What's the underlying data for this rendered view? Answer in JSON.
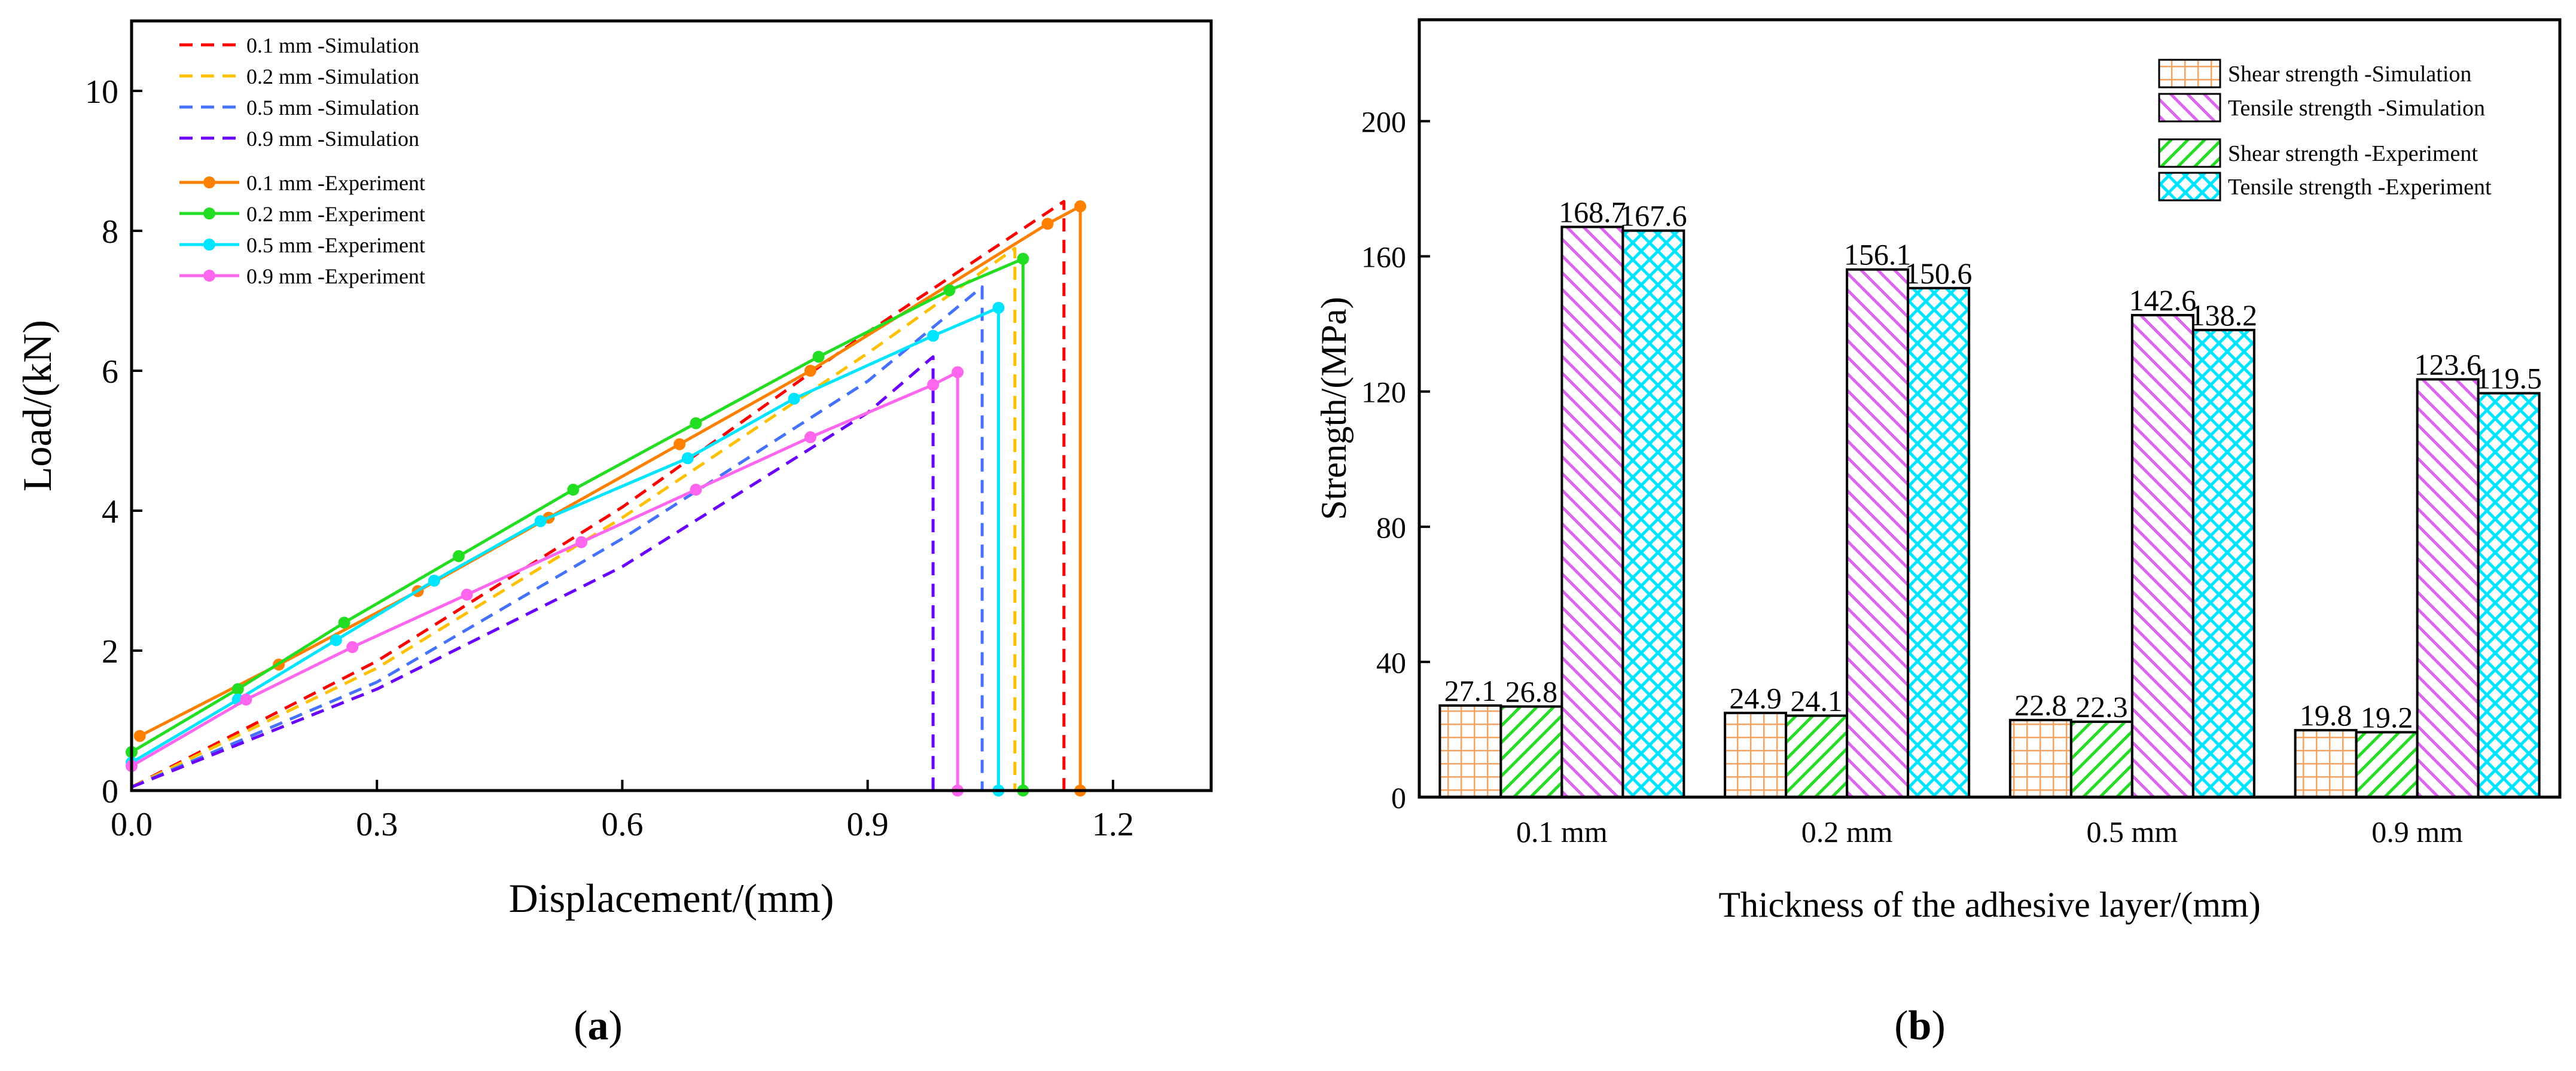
{
  "chart_data": [
    {
      "panel": "(a)",
      "panel_letter": "a",
      "type": "line",
      "xlabel": "Displacement/(mm)",
      "ylabel": "Load/(kN)",
      "xlim": [
        0,
        1.32
      ],
      "ylim": [
        0,
        11
      ],
      "xticks": [
        0.0,
        0.3,
        0.6,
        0.9,
        1.2
      ],
      "xtick_labels": [
        "0.0",
        "0.3",
        "0.6",
        "0.9",
        "1.2"
      ],
      "yticks": [
        0,
        2,
        4,
        6,
        8,
        10
      ],
      "ytick_labels": [
        "0",
        "2",
        "4",
        "6",
        "8",
        "10"
      ],
      "legend_position": "top-left",
      "series": [
        {
          "name": "0.1 mm -Simulation",
          "style": "dashed",
          "color": "#ff0000",
          "x": [
            0.0,
            0.3,
            0.6,
            0.9,
            1.14,
            1.14,
            1.145
          ],
          "y": [
            0.05,
            1.85,
            4.05,
            6.55,
            8.42,
            0.0,
            0.0
          ]
        },
        {
          "name": "0.2 mm -Simulation",
          "style": "dashed",
          "color": "#ffc000",
          "x": [
            0.0,
            0.3,
            0.6,
            0.9,
            1.08,
            1.08
          ],
          "y": [
            0.05,
            1.75,
            3.9,
            6.25,
            7.75,
            0.0
          ]
        },
        {
          "name": "0.5 mm -Simulation",
          "style": "dashed",
          "color": "#4472ff",
          "x": [
            0.0,
            0.3,
            0.6,
            0.9,
            1.04,
            1.04
          ],
          "y": [
            0.05,
            1.55,
            3.6,
            5.85,
            7.2,
            0.0
          ]
        },
        {
          "name": "0.9 mm -Simulation",
          "style": "dashed",
          "color": "#6a00ff",
          "x": [
            0.0,
            0.3,
            0.6,
            0.9,
            0.98,
            0.98
          ],
          "y": [
            0.05,
            1.45,
            3.2,
            5.4,
            6.2,
            0.0
          ]
        },
        {
          "name": "0.1 mm -Experiment",
          "style": "solid-marker",
          "color": "#ff7f00",
          "x": [
            0.01,
            0.18,
            0.35,
            0.51,
            0.67,
            0.83,
            1.12,
            1.16,
            1.16
          ],
          "y": [
            0.78,
            1.8,
            2.85,
            3.9,
            4.95,
            6.0,
            8.1,
            8.35,
            0.0
          ]
        },
        {
          "name": "0.2 mm -Experiment",
          "style": "solid-marker",
          "color": "#22dd22",
          "x": [
            0.0,
            0.13,
            0.26,
            0.4,
            0.54,
            0.69,
            0.84,
            1.0,
            1.09,
            1.09
          ],
          "y": [
            0.55,
            1.45,
            2.4,
            3.35,
            4.3,
            5.25,
            6.2,
            7.15,
            7.6,
            0.0
          ]
        },
        {
          "name": "0.5 mm -Experiment",
          "style": "solid-marker",
          "color": "#00e5ff",
          "x": [
            0.0,
            0.13,
            0.25,
            0.37,
            0.5,
            0.68,
            0.81,
            0.98,
            1.06,
            1.06
          ],
          "y": [
            0.4,
            1.3,
            2.15,
            3.0,
            3.85,
            4.75,
            5.6,
            6.5,
            6.9,
            0.0
          ]
        },
        {
          "name": "0.9 mm -Experiment",
          "style": "solid-marker",
          "color": "#ff66ee",
          "x": [
            0.0,
            0.14,
            0.27,
            0.41,
            0.55,
            0.69,
            0.83,
            0.98,
            1.01,
            1.01
          ],
          "y": [
            0.35,
            1.3,
            2.05,
            2.8,
            3.55,
            4.3,
            5.05,
            5.8,
            5.98,
            0.0
          ]
        }
      ]
    },
    {
      "panel": "(b)",
      "panel_letter": "b",
      "type": "bar",
      "xlabel": "Thickness of the adhesive layer/(mm)",
      "ylabel": "Strength/(MPa)",
      "ylim": [
        0,
        230
      ],
      "yticks": [
        0,
        40,
        80,
        120,
        160,
        200
      ],
      "ytick_labels": [
        "0",
        "40",
        "80",
        "120",
        "160",
        "200"
      ],
      "categories": [
        "0.1 mm",
        "0.2 mm",
        "0.5 mm",
        "0.9 mm"
      ],
      "legend_position": "top-right",
      "series": [
        {
          "name": "Shear strength   -Simulation",
          "pattern": "grid",
          "color": "#f4a460",
          "values": [
            27.1,
            24.9,
            22.8,
            19.8
          ],
          "labels": [
            "27.1",
            "24.9",
            "22.8",
            "19.8"
          ]
        },
        {
          "name": "Shear strength   -Experiment",
          "pattern": "diag-right",
          "color": "#22dd22",
          "values": [
            26.8,
            24.1,
            22.3,
            19.2
          ],
          "labels": [
            "26.8",
            "24.1",
            "22.3",
            "19.2"
          ]
        },
        {
          "name": "Tensile strength -Simulation",
          "pattern": "diag-left",
          "color": "#dd66ee",
          "values": [
            168.7,
            156.1,
            142.6,
            123.6
          ],
          "labels": [
            "168.7",
            "156.1",
            "142.6",
            "123.6"
          ]
        },
        {
          "name": "Tensile strength -Experiment",
          "pattern": "crosshatch",
          "color": "#00e5ff",
          "values": [
            167.6,
            150.6,
            138.2,
            119.5
          ],
          "labels": [
            "167.6",
            "150.6",
            "138.2",
            "119.5"
          ]
        }
      ]
    }
  ]
}
